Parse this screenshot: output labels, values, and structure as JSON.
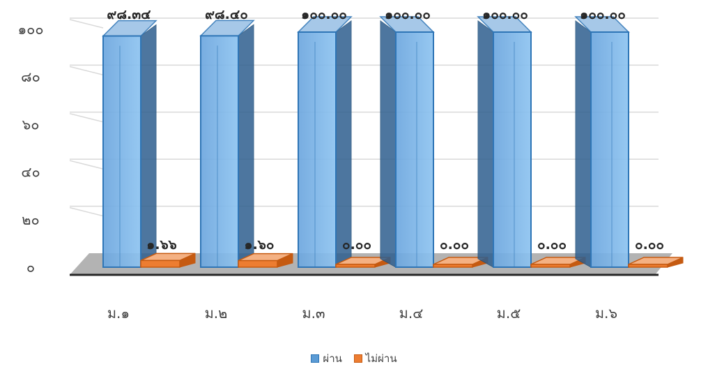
{
  "chart_data": {
    "type": "bar",
    "categories": [
      "ม.๑",
      "ม.๒",
      "ม.๓",
      "ม.๔",
      "ม.๕",
      "ม.๖"
    ],
    "series": [
      {
        "name": "ผ่าน",
        "values": [
          98.34,
          98.4,
          100.0,
          100.0,
          100.0,
          100.0
        ],
        "labels": [
          "๙๘.๓๔",
          "๙๘.๔๐",
          "๑๐๐.๐๐",
          "๑๐๐.๐๐",
          "๑๐๐.๐๐",
          "๑๐๐.๐๐"
        ],
        "color": "#5B9BD5"
      },
      {
        "name": "ไม่ผ่าน",
        "values": [
          1.66,
          1.6,
          0.0,
          0.0,
          0.0,
          0.0
        ],
        "labels": [
          "๑.๖๖",
          "๑.๖๐",
          "๐.๐๐",
          "๐.๐๐",
          "๐.๐๐",
          "๐.๐๐"
        ],
        "color": "#ED7D31"
      }
    ],
    "y_ticks": [
      0,
      20,
      40,
      60,
      80,
      100
    ],
    "y_tick_labels": [
      "๐",
      "๒๐",
      "๔๐",
      "๖๐",
      "๘๐",
      "๑๐๐"
    ],
    "ylim": [
      0,
      100
    ],
    "grid": true,
    "legend_position": "bottom",
    "style": "3d-clustered-column"
  }
}
